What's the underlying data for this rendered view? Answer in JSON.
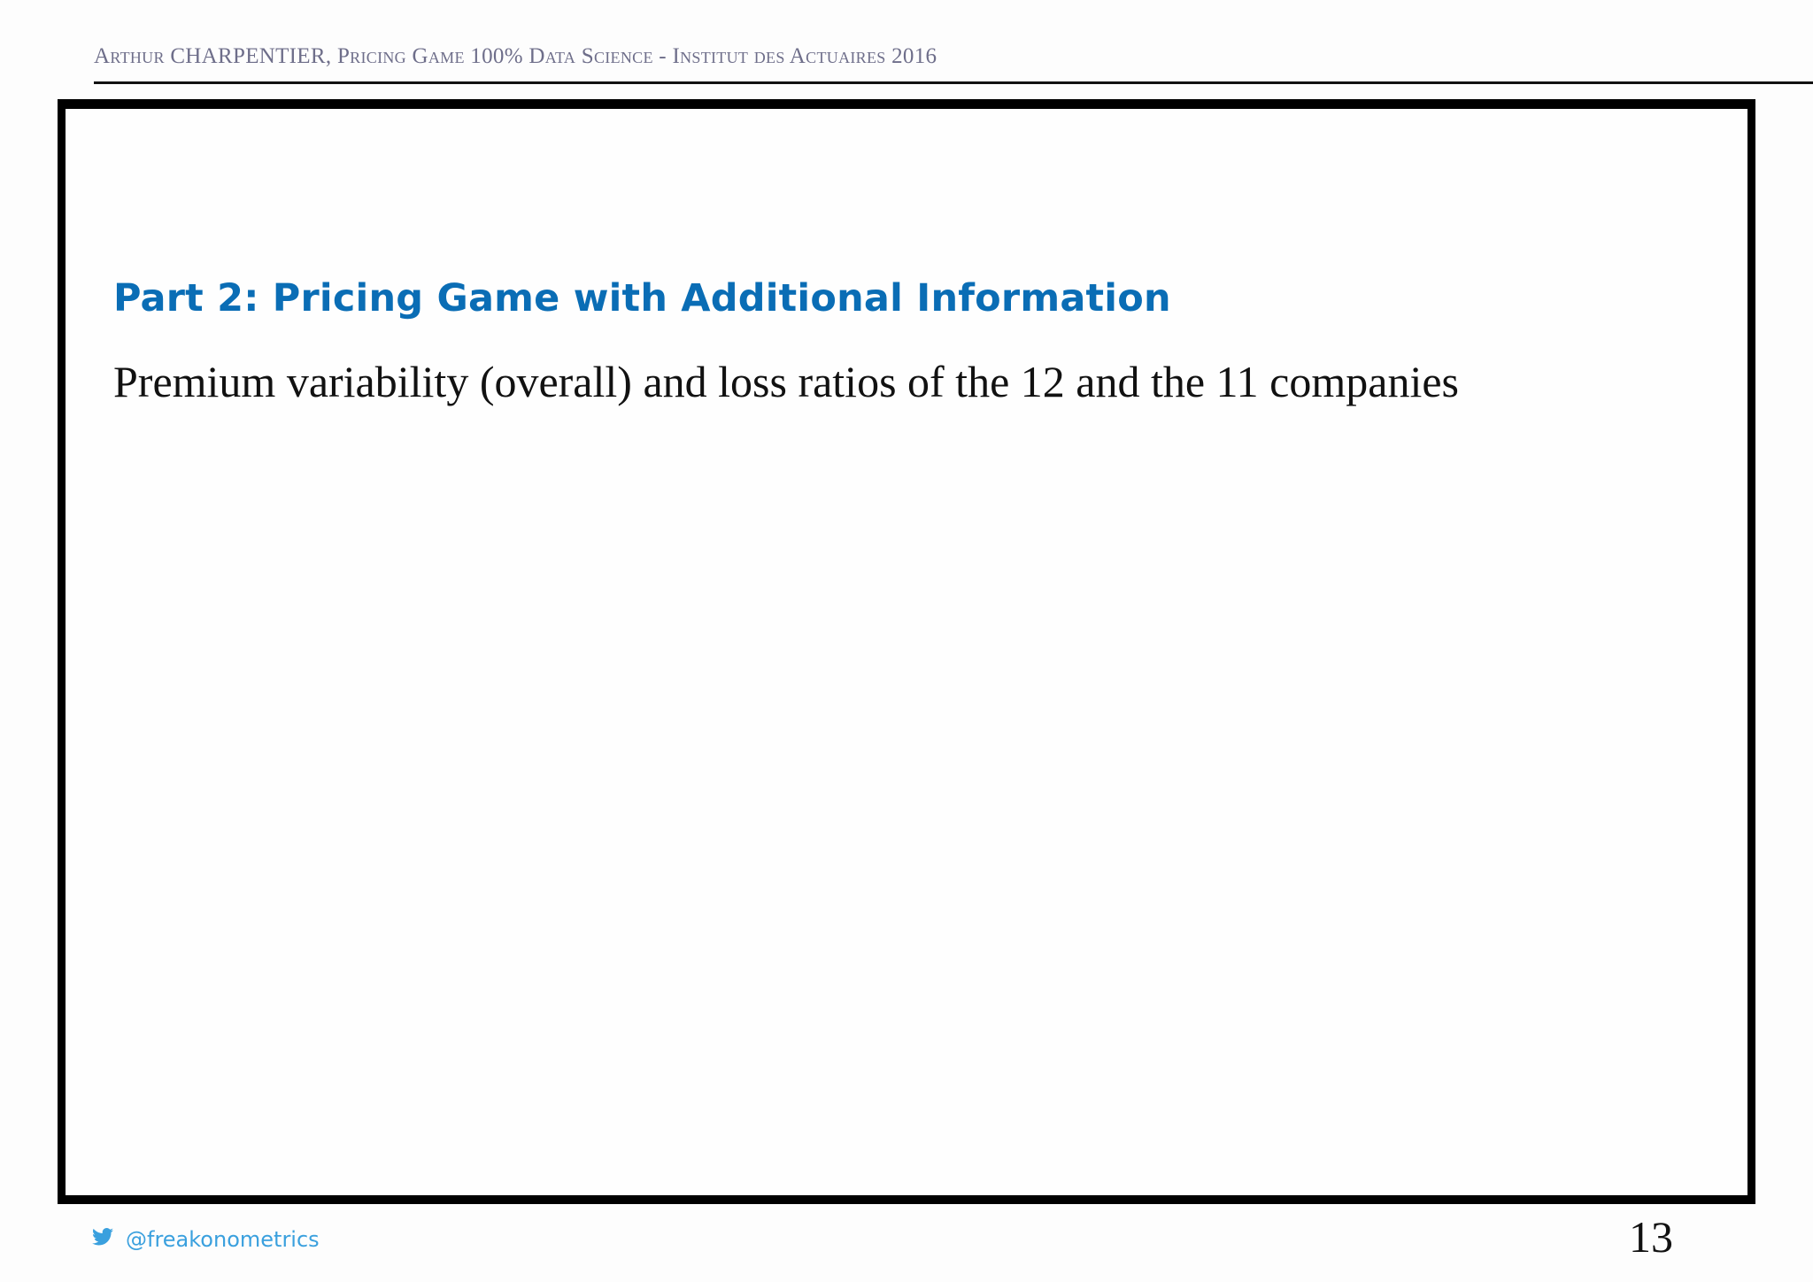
{
  "header": {
    "running_title": "Arthur CHARPENTIER, Pricing Game 100% Data Science - Institut des Actuaires 2016"
  },
  "slide": {
    "title": "Part 2: Pricing Game with Additional Information",
    "subtitle": "Premium variability (overall) and loss ratios of the 12 and the 11 companies"
  },
  "footer": {
    "twitter_handle": "@freakonometrics",
    "icon": "twitter-bird-icon",
    "page_number": "13"
  },
  "colors": {
    "title": "#0a6db5",
    "twitter": "#3aa0de"
  }
}
